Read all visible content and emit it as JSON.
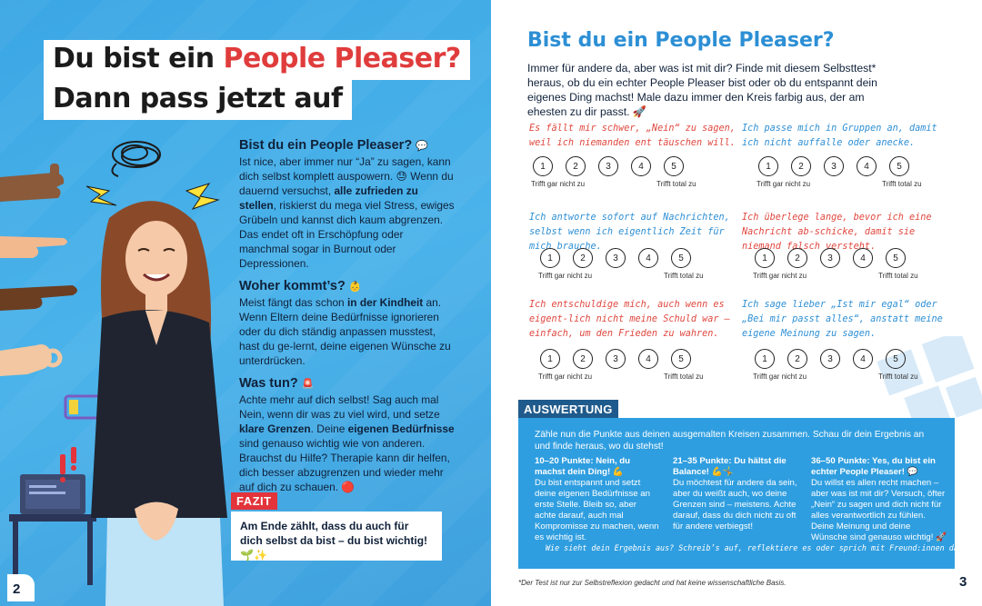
{
  "left": {
    "title_line1_part1": "Du bist ein ",
    "title_line1_highlight": "People Pleaser?",
    "title_line2": "Dann pass jetzt auf",
    "sections": [
      {
        "heading": "Bist du ein People Pleaser?",
        "emoji": "💬",
        "text_html_parts": [
          "Ist nice, aber immer nur “Ja” zu sagen, kann dich selbst komplett auspowern. 😓 Wenn du dauernd versuchst, ",
          "alle zufrieden zu stellen",
          ", riskierst du mega viel Stress, ewiges Grübeln und kannst dich kaum abgrenzen. Das endet oft in Erschöpfung oder manchmal sogar in Burnout oder Depressionen."
        ]
      },
      {
        "heading": "Woher kommt’s?",
        "emoji": "👶",
        "text_html_parts": [
          "Meist fängt das schon ",
          "in der Kindheit",
          " an. Wenn Eltern deine Bedürfnisse ignorieren oder du dich ständig anpassen musstest, hast du ge-lernt, deine eigenen Wünsche zu unterdrücken."
        ]
      },
      {
        "heading": "Was tun?",
        "emoji": "🚨",
        "text_parts": [
          "Achte mehr auf dich selbst! Sag auch mal Nein, wenn dir was zu viel wird, und setze ",
          "klare Grenzen",
          ". Deine ",
          "eigenen Bedürfnisse",
          " sind genauso wichtig wie von anderen. Brauchst du Hilfe? Therapie kann dir helfen, dich besser abzugrenzen und wieder mehr auf dich zu schauen. 🔴"
        ]
      }
    ],
    "fazit_label": "FAZIT",
    "fazit_text": "Am Ende zählt, dass du auch für dich selbst da bist – du bist wichtig! 🌱✨",
    "page_number": "2",
    "colors": {
      "background": "#3aa6e4",
      "highlight": "#e03c3c",
      "fazit": "#e2343a"
    },
    "icons": [
      "speech-bubble-icon",
      "baby-icon",
      "siren-icon"
    ]
  },
  "right": {
    "title": "Bist du ein People Pleaser?",
    "intro": "Immer für andere da, aber was ist mit dir? Finde mit diesem Selbsttest* heraus, ob du ein echter People Pleaser bist oder ob du entspannt dein eigenes Ding machst! Male dazu immer den Kreis farbig aus, der am ehesten zu dir passt. 🚀",
    "questions": [
      {
        "text": "Es fällt mir schwer, „Nein“ zu sagen, weil ich niemanden ent täuschen will.",
        "color": "red"
      },
      {
        "text": "Ich passe mich in Gruppen an, damit ich nicht auffalle oder anecke.",
        "color": "blue"
      },
      {
        "text": "Ich antworte sofort auf Nachrichten, selbst wenn ich eigentlich Zeit für mich brauche.",
        "color": "blue"
      },
      {
        "text": "Ich überlege lange, bevor ich eine Nachricht ab-schicke, damit sie niemand falsch versteht.",
        "color": "red"
      },
      {
        "text": "Ich entschuldige mich, auch wenn es eigent-lich nicht meine Schuld war – einfach, um den Frieden zu wahren.",
        "color": "red"
      },
      {
        "text": "Ich sage lieber „Ist mir egal“ oder „Bei mir passt alles“, anstatt meine eigene Meinung zu sagen.",
        "color": "blue"
      }
    ],
    "scale_numbers": [
      "1",
      "2",
      "3",
      "4",
      "5"
    ],
    "scale_low": "Trifft gar nicht zu",
    "scale_high": "Trifft total zu",
    "auswertung_label": "AUSWERTUNG",
    "auswertung_intro": "Zähle nun die Punkte aus deinen ausgemalten Kreisen zusammen. Schau dir dein Ergebnis an und finde heraus, wo du stehst!",
    "results": [
      {
        "heading": "10–20 Punkte: Nein, du machst dein Ding! 💪",
        "text": "Du bist entspannt und setzt deine eigenen Bedürfnisse an erste Stelle. Bleib so, aber achte darauf, auch mal Kompromisse zu machen, wenn es wichtig ist."
      },
      {
        "heading": "21–35 Punkte: Du hältst die Balance! 💪🤸",
        "text": "Du möchtest für andere da sein, aber du weißt auch, wo deine Grenzen sind – meistens. Achte darauf, dass du dich nicht zu oft für andere verbiegst!"
      },
      {
        "heading": "36–50 Punkte: Yes, du bist ein echter People Pleaser! 💬",
        "text": "Du willst es allen recht machen – aber was ist mit dir? Versuch, öfter „Nein“ zu sagen und dich nicht für alles verantwortlich zu fühlen. Deine Meinung und deine Wünsche sind genauso wichtig! 🚀"
      }
    ],
    "auswertung_footer": "Wie sieht dein Ergebnis aus? Schreib’s auf, reflektiere es oder sprich mit Freund:innen darüber! 🚀",
    "footnote": "*Der Test ist nur zur Selbstreflexion gedacht und hat keine wissenschaftliche Basis.",
    "page_number": "3",
    "colors": {
      "title": "#2d8fd5",
      "question_red": "#e0473f",
      "question_blue": "#2d8fd5",
      "box": "#2f9ee0",
      "label": "#1f5a8c"
    }
  }
}
